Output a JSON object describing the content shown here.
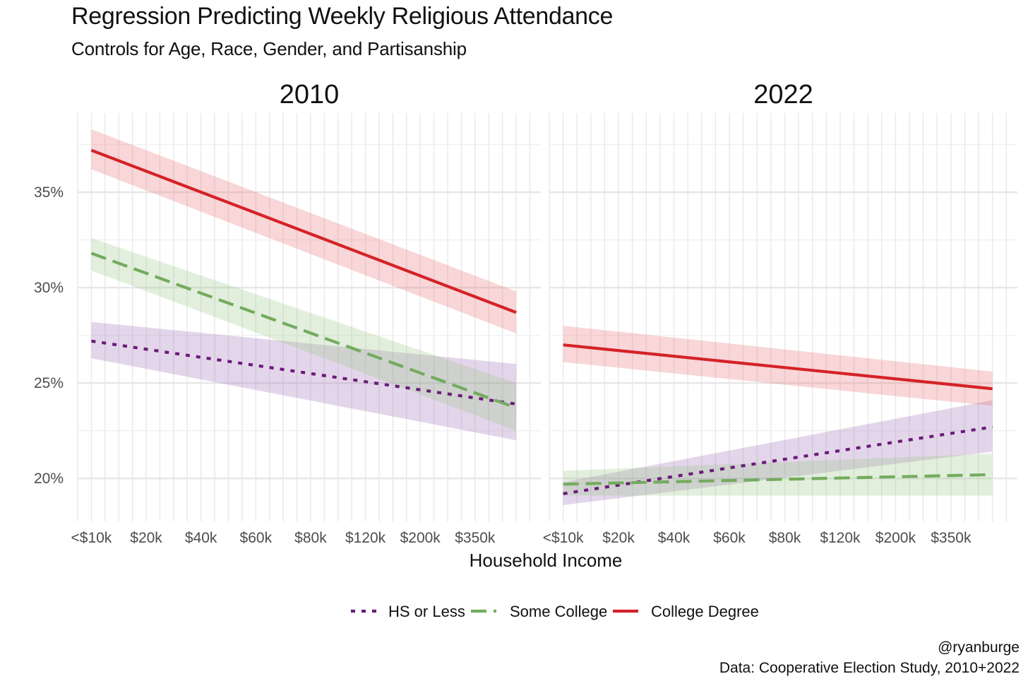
{
  "chart_data": {
    "type": "line",
    "title": "Regression Predicting Weekly Religious Attendance",
    "subtitle": "Controls for Age, Race, Gender, and Partisanship",
    "xlabel": "Household Income",
    "ylabel": "",
    "categories": [
      "<$10k",
      "$20k",
      "$40k",
      "$60k",
      "$80k",
      "$120k",
      "$200k",
      "$350k"
    ],
    "x_positions": [
      1,
      2,
      3,
      4,
      5,
      6,
      7,
      8
    ],
    "x_range": [
      0.75,
      9.2
    ],
    "line_x_range": [
      1,
      8.75
    ],
    "y_ticks": [
      20,
      25,
      30,
      35
    ],
    "y_tick_labels": [
      "20%",
      "25%",
      "30%",
      "35%"
    ],
    "ylim": [
      17.75,
      39.15
    ],
    "grid": true,
    "legend_position": "bottom",
    "series_styles": [
      {
        "name": "HS or Less",
        "color": "#6a1b7a",
        "dash": "6,9",
        "band_color": "#9d6bb5"
      },
      {
        "name": "Some College",
        "color": "#74ab5f",
        "dash": "22,10",
        "band_color": "#97c486"
      },
      {
        "name": "College Degree",
        "color": "#d42228",
        "dash": "",
        "band_color": "#e86b6f"
      }
    ],
    "panels": [
      {
        "title": "2010",
        "series": [
          {
            "name": "HS or Less",
            "start": 27.2,
            "end": 23.9,
            "start_band": [
              26.3,
              28.2
            ],
            "end_band": [
              22.0,
              26.0
            ]
          },
          {
            "name": "Some College",
            "start": 31.8,
            "end": 23.7,
            "start_band": [
              30.9,
              32.6
            ],
            "end_band": [
              22.5,
              25.0
            ]
          },
          {
            "name": "College Degree",
            "start": 37.2,
            "end": 28.7,
            "start_band": [
              36.2,
              38.3
            ],
            "end_band": [
              27.6,
              29.8
            ]
          }
        ]
      },
      {
        "title": "2022",
        "series": [
          {
            "name": "HS or Less",
            "start": 19.2,
            "end": 22.7,
            "start_band": [
              18.6,
              19.8
            ],
            "end_band": [
              21.4,
              24.1
            ]
          },
          {
            "name": "Some College",
            "start": 19.7,
            "end": 20.2,
            "start_band": [
              19.1,
              20.4
            ],
            "end_band": [
              19.1,
              21.3
            ]
          },
          {
            "name": "College Degree",
            "start": 27.0,
            "end": 24.7,
            "start_band": [
              26.1,
              28.0
            ],
            "end_band": [
              23.8,
              25.6
            ]
          }
        ]
      }
    ]
  },
  "caption": {
    "handle": "@ryanburge",
    "source": "Data: Cooperative Election Study, 2010+2022"
  }
}
